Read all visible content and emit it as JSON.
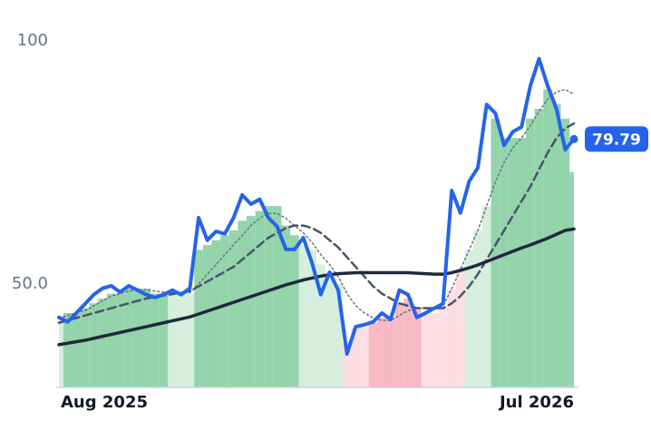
{
  "chart_data": {
    "type": "line",
    "xlim": [
      0,
      59
    ],
    "ylim": [
      28.7,
      102.8
    ],
    "xticks": [
      {
        "value": 0,
        "label": "Aug 2025"
      },
      {
        "value": 59,
        "label": "Jul 2026"
      }
    ],
    "yticks": [
      100,
      {
        "value": 50,
        "label": "50.0"
      }
    ],
    "grid": false,
    "price": {
      "color": "#2563eb",
      "values": [
        43.1,
        42.2,
        44.0,
        45.9,
        47.8,
        49.1,
        49.6,
        48.3,
        49.6,
        48.7,
        47.8,
        47.2,
        47.8,
        48.7,
        47.8,
        49.1,
        63.6,
        59.0,
        60.8,
        60.3,
        63.6,
        68.3,
        66.4,
        67.4,
        63.6,
        61.8,
        57.1,
        57.1,
        59.5,
        54.3,
        47.8,
        52.4,
        48.7,
        35.6,
        41.2,
        41.6,
        42.2,
        44.0,
        42.7,
        48.7,
        47.8,
        43.1,
        44.0,
        45.0,
        45.9,
        69.2,
        64.6,
        71.1,
        73.9,
        86.9,
        85.1,
        78.5,
        81.3,
        82.3,
        90.7,
        96.3,
        90.7,
        86.0,
        77.6,
        79.79
      ],
      "last_label": "79.79"
    },
    "ma_fast": {
      "color": "#6b7280",
      "values": [
        43,
        43.5,
        44,
        44.5,
        45.5,
        46.5,
        47.5,
        48,
        48.5,
        48.8,
        48.8,
        48.5,
        48.3,
        48.2,
        48.2,
        48.2,
        50,
        52,
        54,
        56,
        58,
        60,
        62,
        63.5,
        64.5,
        64.5,
        63.5,
        62,
        60.5,
        58.5,
        56,
        54,
        51.5,
        48,
        45.5,
        44,
        43,
        42.5,
        42.5,
        43.5,
        44.5,
        45,
        45,
        45,
        45.5,
        49,
        53,
        57,
        61,
        66,
        71,
        75,
        78,
        80,
        82.5,
        85.5,
        88,
        89.5,
        90,
        89
      ]
    },
    "ma_mid": {
      "color": "#475569",
      "values": [
        42,
        42.5,
        43,
        43.5,
        44,
        44.5,
        45,
        45.5,
        46,
        46.5,
        47,
        47.3,
        47.6,
        47.9,
        48.2,
        48.5,
        49.5,
        50.5,
        51.5,
        52.5,
        53.5,
        55,
        56.5,
        58,
        59.5,
        60.5,
        61.5,
        62,
        62,
        61.5,
        60.5,
        59,
        57.5,
        55.5,
        53.5,
        51.5,
        49.5,
        48,
        47,
        46,
        45.5,
        45,
        45,
        45,
        45,
        46,
        47.5,
        49.5,
        52,
        55,
        58,
        61,
        64,
        67,
        70,
        73.5,
        77,
        80,
        82,
        83
      ]
    },
    "ma_slow": {
      "color": "#1e293b",
      "values": [
        37.5,
        37.8,
        38.1,
        38.4,
        38.8,
        39.2,
        39.6,
        40,
        40.4,
        40.8,
        41.2,
        41.6,
        42,
        42.4,
        42.8,
        43.2,
        43.8,
        44.4,
        45,
        45.6,
        46.2,
        46.8,
        47.4,
        48,
        48.6,
        49.2,
        49.8,
        50.3,
        50.8,
        51.2,
        51.6,
        51.9,
        52.1,
        52.2,
        52.3,
        52.3,
        52.3,
        52.3,
        52.3,
        52.3,
        52.3,
        52.2,
        52.1,
        52,
        52,
        52.3,
        52.8,
        53.3,
        53.9,
        54.6,
        55.3,
        56,
        56.7,
        57.4,
        58,
        58.7,
        59.4,
        60.2,
        61,
        61.3
      ]
    },
    "bands": {
      "values": [
        43,
        44,
        44,
        45,
        46,
        47,
        48,
        48,
        49,
        49,
        49,
        48,
        48,
        48,
        48,
        48,
        57,
        58,
        59,
        60,
        61,
        63,
        64,
        65,
        66,
        66,
        62,
        60,
        58,
        57,
        54,
        52,
        50,
        38,
        41,
        41,
        42,
        43,
        43,
        46,
        47,
        45,
        44,
        44,
        45,
        49,
        53,
        57,
        61,
        66,
        84,
        80,
        80,
        80,
        84,
        86,
        90,
        87,
        84,
        73
      ],
      "colors": [
        "#d5eedd",
        "#93d4ab",
        "#93d4ab",
        "#93d4ab",
        "#93d4ab",
        "#93d4ab",
        "#93d4ab",
        "#93d4ab",
        "#93d4ab",
        "#93d4ab",
        "#93d4ab",
        "#93d4ab",
        "#93d4ab",
        "#d5eedd",
        "#d5eedd",
        "#d5eedd",
        "#93d4ab",
        "#93d4ab",
        "#93d4ab",
        "#93d4ab",
        "#93d4ab",
        "#93d4ab",
        "#93d4ab",
        "#93d4ab",
        "#93d4ab",
        "#93d4ab",
        "#93d4ab",
        "#93d4ab",
        "#d5eedd",
        "#d5eedd",
        "#d5eedd",
        "#d5eedd",
        "#d5eedd",
        "#fcdde3",
        "#fcdde3",
        "#fcdde3",
        "#f7b9c4",
        "#f7b9c4",
        "#f7b9c4",
        "#f7b9c4",
        "#f7b9c4",
        "#f7b9c4",
        "#fcdde3",
        "#fcdde3",
        "#fcdde3",
        "#fcdde3",
        "#fcdde3",
        "#d5eedd",
        "#d5eedd",
        "#d5eedd",
        "#93d4ab",
        "#93d4ab",
        "#93d4ab",
        "#93d4ab",
        "#93d4ab",
        "#93d4ab",
        "#93d4ab",
        "#93d4ab",
        "#93d4ab",
        "#93d4ab"
      ]
    }
  }
}
